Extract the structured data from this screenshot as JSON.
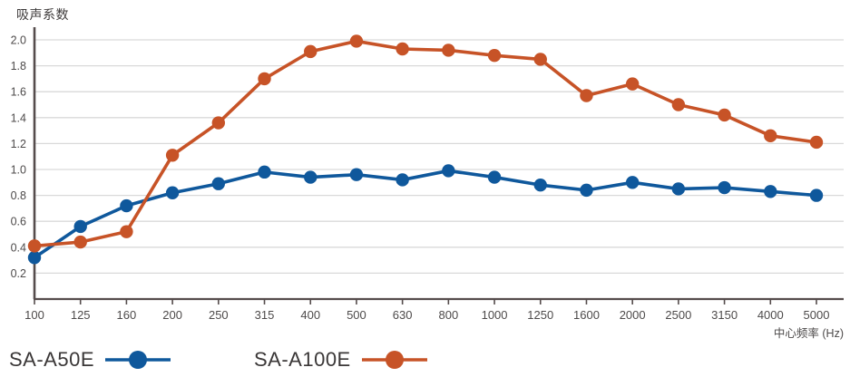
{
  "title": "吸声系数",
  "chart_data": {
    "type": "line",
    "title": "吸声系数",
    "xlabel": "中心频率 (Hz)",
    "ylabel": "吸声系数",
    "categories": [
      "100",
      "125",
      "160",
      "200",
      "250",
      "315",
      "400",
      "500",
      "630",
      "800",
      "1000",
      "1250",
      "1600",
      "2000",
      "2500",
      "3150",
      "4000",
      "5000"
    ],
    "series": [
      {
        "name": "SA-A50E",
        "color": "#0f589c",
        "values": [
          0.32,
          0.56,
          0.72,
          0.82,
          0.89,
          0.98,
          0.94,
          0.96,
          0.92,
          0.99,
          0.94,
          0.88,
          0.84,
          0.9,
          0.85,
          0.86,
          0.83,
          0.8
        ]
      },
      {
        "name": "SA-A100E",
        "color": "#c75327",
        "values": [
          0.41,
          0.44,
          0.52,
          1.11,
          1.36,
          1.7,
          1.91,
          1.99,
          1.93,
          1.92,
          1.88,
          1.85,
          1.57,
          1.66,
          1.5,
          1.42,
          1.26,
          1.21
        ]
      }
    ],
    "y_ticks": [
      0.2,
      0.4,
      0.6,
      0.8,
      1.0,
      1.2,
      1.4,
      1.6,
      1.8,
      2.0
    ],
    "ylim": [
      0,
      2.1
    ],
    "grid": true,
    "legend_position": "bottom",
    "colors": {
      "grid_line": "#d9d9d9",
      "axis_line": "#554c4c",
      "tick_label": "#4d4a4a",
      "background": "#ffffff"
    }
  }
}
